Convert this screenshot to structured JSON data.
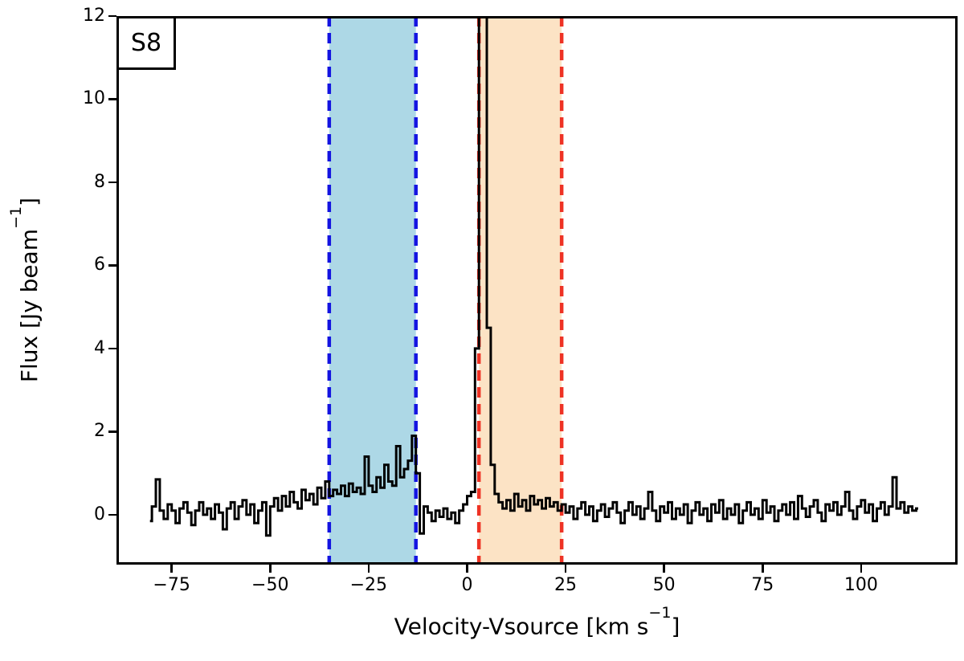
{
  "panel_label": "S8",
  "axes": {
    "xlabel": {
      "pre": "Velocity-Vsource [km s",
      "sup": "−1",
      "post": "]"
    },
    "ylabel": {
      "pre": "Flux [Jy beam",
      "sup": "−1",
      "post": "]"
    }
  },
  "chart_data": {
    "type": "line",
    "panel_label": "S8",
    "title": "",
    "xlabel": "Velocity-Vsource [km s⁻¹]",
    "ylabel": "Flux [Jy beam⁻¹]",
    "xlim": [
      -89,
      124.5
    ],
    "ylim": [
      -1.2,
      12.0
    ],
    "x_ticks": [
      -75,
      -50,
      -25,
      0,
      25,
      50,
      75,
      100
    ],
    "y_ticks": [
      0,
      2,
      4,
      6,
      8,
      10,
      12
    ],
    "grid": false,
    "legend": null,
    "draw_style": "steps-mid",
    "line": {
      "color": "#000000",
      "width": 3
    },
    "spine_color": "#000000",
    "regions": [
      {
        "name": "blue-velocity-window",
        "x_from": -35,
        "x_to": -13,
        "fill": "#add8e6",
        "edge_color": "#1414e1",
        "edge_style": "dashed",
        "edge_width": 4.5
      },
      {
        "name": "red-velocity-window",
        "x_from": 3,
        "x_to": 24,
        "fill": "#fce3c5",
        "edge_color": "#ee3224",
        "edge_style": "dashed",
        "edge_width": 4.5
      }
    ],
    "series": [
      {
        "name": "spectrum",
        "x_start": -80.5,
        "x_step": 1.0,
        "flux": [
          -0.15,
          0.2,
          0.85,
          0.1,
          -0.1,
          0.25,
          0.1,
          -0.2,
          0.15,
          0.3,
          0.05,
          -0.25,
          0.1,
          0.3,
          0.0,
          0.15,
          -0.1,
          0.25,
          0.05,
          -0.35,
          0.15,
          0.3,
          -0.1,
          0.2,
          0.35,
          0.0,
          0.25,
          -0.2,
          0.1,
          0.3,
          -0.5,
          0.2,
          0.4,
          0.1,
          0.45,
          0.2,
          0.55,
          0.3,
          0.15,
          0.6,
          0.35,
          0.5,
          0.25,
          0.65,
          0.4,
          0.8,
          0.45,
          0.6,
          0.5,
          0.7,
          0.45,
          0.75,
          0.55,
          0.65,
          0.5,
          1.4,
          0.7,
          0.55,
          0.9,
          0.65,
          1.2,
          0.8,
          0.7,
          1.65,
          0.9,
          1.1,
          1.3,
          1.9,
          1.0,
          -0.45,
          0.2,
          0.05,
          -0.15,
          0.1,
          -0.05,
          0.15,
          -0.1,
          0.05,
          -0.2,
          0.1,
          0.25,
          0.45,
          0.55,
          4.0,
          12.3,
          12.0,
          4.5,
          1.2,
          0.5,
          0.3,
          0.15,
          0.35,
          0.1,
          0.5,
          0.2,
          0.35,
          0.1,
          0.45,
          0.25,
          0.35,
          0.15,
          0.4,
          0.2,
          0.3,
          0.1,
          0.25,
          0.05,
          0.2,
          -0.1,
          0.15,
          0.3,
          0.0,
          0.2,
          -0.15,
          0.1,
          0.25,
          -0.05,
          0.15,
          0.3,
          0.05,
          -0.2,
          0.1,
          0.3,
          0.0,
          0.2,
          -0.1,
          0.15,
          0.55,
          0.1,
          -0.15,
          0.2,
          0.05,
          0.3,
          -0.1,
          0.15,
          0.0,
          0.25,
          -0.2,
          0.1,
          0.3,
          0.0,
          0.15,
          -0.15,
          0.25,
          0.05,
          0.35,
          -0.1,
          0.15,
          0.0,
          0.25,
          -0.2,
          0.1,
          0.3,
          0.0,
          0.15,
          -0.1,
          0.35,
          0.05,
          0.2,
          -0.15,
          0.1,
          0.25,
          0.0,
          0.3,
          -0.1,
          0.45,
          0.15,
          -0.05,
          0.2,
          0.35,
          0.05,
          -0.15,
          0.25,
          0.1,
          0.3,
          0.0,
          0.2,
          0.55,
          0.1,
          -0.1,
          0.2,
          0.35,
          0.05,
          0.25,
          -0.15,
          0.15,
          0.3,
          0.0,
          0.2,
          0.9,
          0.15,
          0.3,
          0.05,
          0.2,
          0.1,
          0.15
        ]
      }
    ],
    "annotations": {
      "main_peak_x": 3.8,
      "main_peak_clipped_at": 12
    }
  }
}
